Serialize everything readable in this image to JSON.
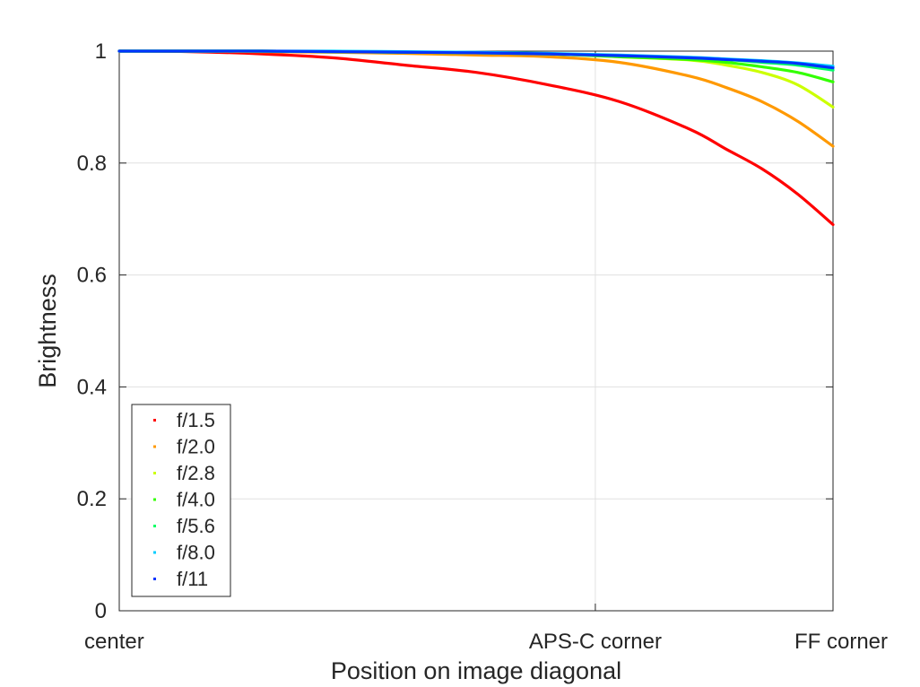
{
  "chart_data": {
    "type": "line",
    "title": "",
    "xlabel": "Position on image diagonal",
    "ylabel": "Brightness",
    "xlim": [
      0,
      1
    ],
    "ylim": [
      0,
      1
    ],
    "x_ticks": [
      {
        "value": 0,
        "label": "center"
      },
      {
        "value": 0.667,
        "label": "APS-C corner"
      },
      {
        "value": 1,
        "label": "FF corner"
      }
    ],
    "y_ticks": [
      {
        "value": 0,
        "label": "0"
      },
      {
        "value": 0.2,
        "label": "0.2"
      },
      {
        "value": 0.4,
        "label": "0.4"
      },
      {
        "value": 0.6,
        "label": "0.6"
      },
      {
        "value": 0.8,
        "label": "0.8"
      },
      {
        "value": 1,
        "label": "1"
      }
    ],
    "grid": true,
    "legend_position": "bottom-left",
    "x": [
      0,
      0.1,
      0.2,
      0.3,
      0.4,
      0.5,
      0.6,
      0.7,
      0.8,
      0.85,
      0.9,
      0.95,
      1.0
    ],
    "series": [
      {
        "name": "f/1.5",
        "color": "#ff0000",
        "values": [
          1.0,
          0.999,
          0.995,
          0.988,
          0.975,
          0.962,
          0.94,
          0.91,
          0.86,
          0.825,
          0.79,
          0.745,
          0.69
        ]
      },
      {
        "name": "f/2.0",
        "color": "#ff9900",
        "values": [
          1.0,
          1.0,
          0.999,
          0.998,
          0.996,
          0.993,
          0.99,
          0.98,
          0.955,
          0.935,
          0.91,
          0.875,
          0.83
        ]
      },
      {
        "name": "f/2.8",
        "color": "#ccff00",
        "values": [
          1.0,
          1.0,
          1.0,
          0.999,
          0.998,
          0.997,
          0.995,
          0.99,
          0.984,
          0.975,
          0.962,
          0.94,
          0.9
        ]
      },
      {
        "name": "f/4.0",
        "color": "#33ff00",
        "values": [
          1.0,
          1.0,
          1.0,
          0.999,
          0.998,
          0.997,
          0.995,
          0.99,
          0.985,
          0.98,
          0.972,
          0.962,
          0.945
        ]
      },
      {
        "name": "f/5.6",
        "color": "#00ff66",
        "values": [
          1.0,
          1.0,
          1.0,
          0.999,
          0.998,
          0.997,
          0.995,
          0.992,
          0.988,
          0.985,
          0.98,
          0.975,
          0.966
        ]
      },
      {
        "name": "f/8.0",
        "color": "#00ccff",
        "values": [
          1.0,
          1.0,
          1.0,
          1.0,
          0.999,
          0.998,
          0.996,
          0.993,
          0.989,
          0.986,
          0.983,
          0.979,
          0.973
        ]
      },
      {
        "name": "f/11",
        "color": "#0033ff",
        "values": [
          1.0,
          1.0,
          1.0,
          0.999,
          0.998,
          0.997,
          0.995,
          0.992,
          0.988,
          0.985,
          0.982,
          0.978,
          0.97
        ]
      }
    ]
  }
}
